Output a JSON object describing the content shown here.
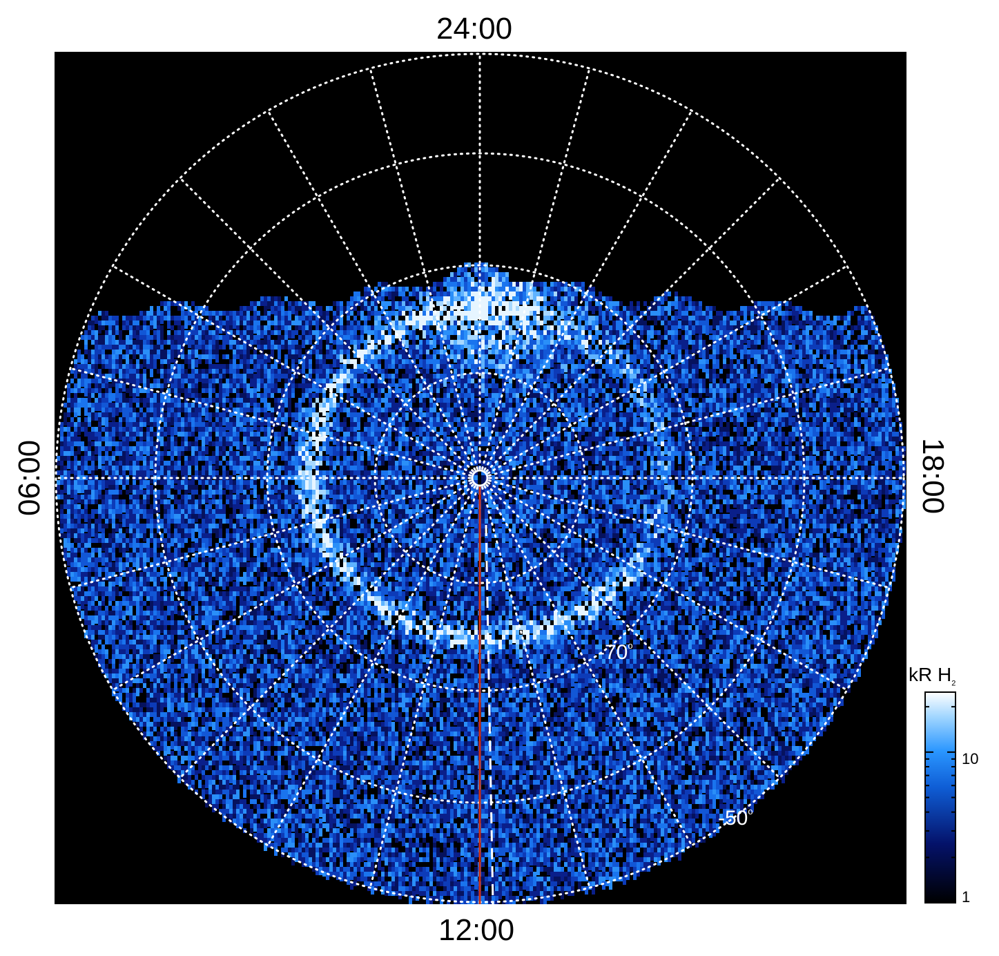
{
  "image": {
    "description_labels": {
      "local_time_top": "24:00",
      "local_time_bottom": "12:00",
      "local_time_left": "06:00",
      "local_time_right": "18:00"
    },
    "latitude_labels": {
      "inner": "-70",
      "outer": "-50",
      "degree_symbol": "o"
    },
    "colorbar": {
      "unit": "kR H",
      "unit_subscript": "2",
      "tick_high": "10",
      "tick_low": "1",
      "scale": "log"
    },
    "colors": {
      "background": "#000000",
      "grid": "#ffffff",
      "meridian_line": "#d03010",
      "emission_dark": "#0a1a6a",
      "emission_mid": "#1e8cf0",
      "emission_bright": "#e8f6ff"
    }
  }
}
